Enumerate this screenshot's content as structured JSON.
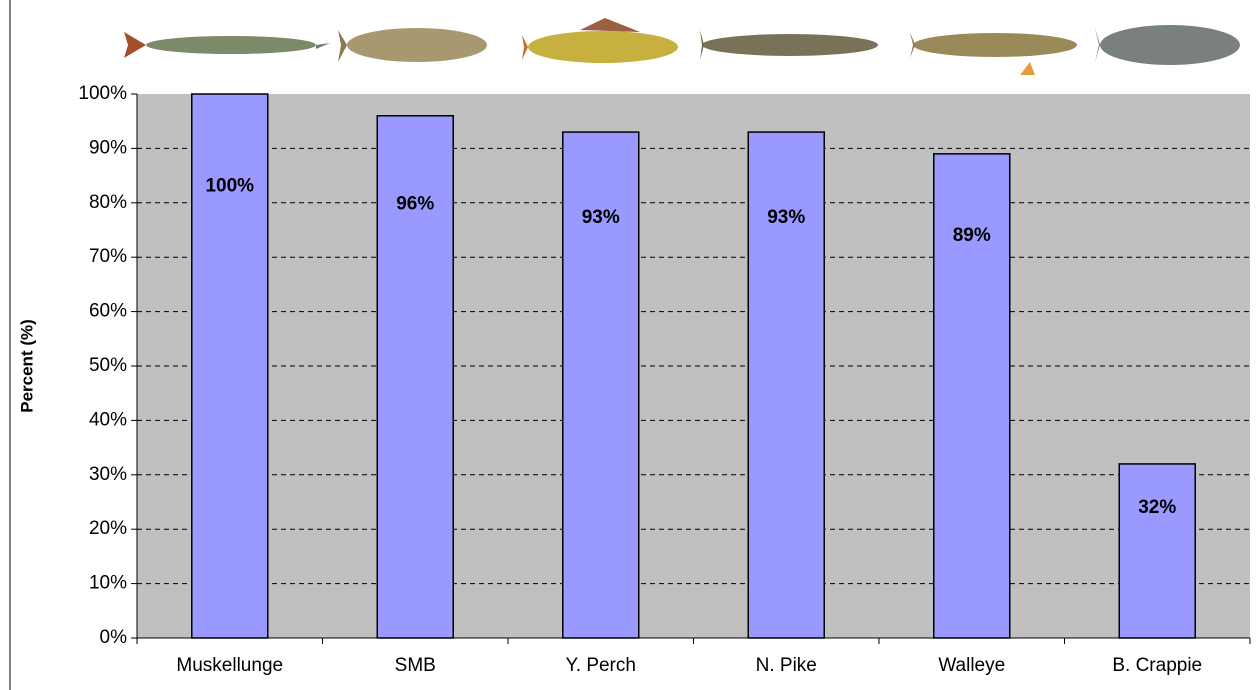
{
  "chart_data": {
    "type": "bar",
    "y_axis_label": "Percent (%)",
    "categories": [
      "Muskellunge",
      "SMB",
      "Y. Perch",
      "N. Pike",
      "Walleye",
      "B. Crappie"
    ],
    "values": [
      100,
      96,
      93,
      93,
      89,
      32
    ],
    "value_labels": [
      "100%",
      "96%",
      "93%",
      "93%",
      "89%",
      "32%"
    ],
    "color": "#9999ff",
    "ylim": [
      0,
      100
    ],
    "yticks": [
      {
        "value": 0,
        "label": "0%"
      },
      {
        "value": 10,
        "label": "10%"
      },
      {
        "value": 20,
        "label": "20%"
      },
      {
        "value": 30,
        "label": "30%"
      },
      {
        "value": 40,
        "label": "40%"
      },
      {
        "value": 50,
        "label": "50%"
      },
      {
        "value": 60,
        "label": "60%"
      },
      {
        "value": 70,
        "label": "70%"
      },
      {
        "value": 80,
        "label": "80%"
      },
      {
        "value": 90,
        "label": "90%"
      },
      {
        "value": 100,
        "label": "100%"
      }
    ],
    "grid": true
  }
}
